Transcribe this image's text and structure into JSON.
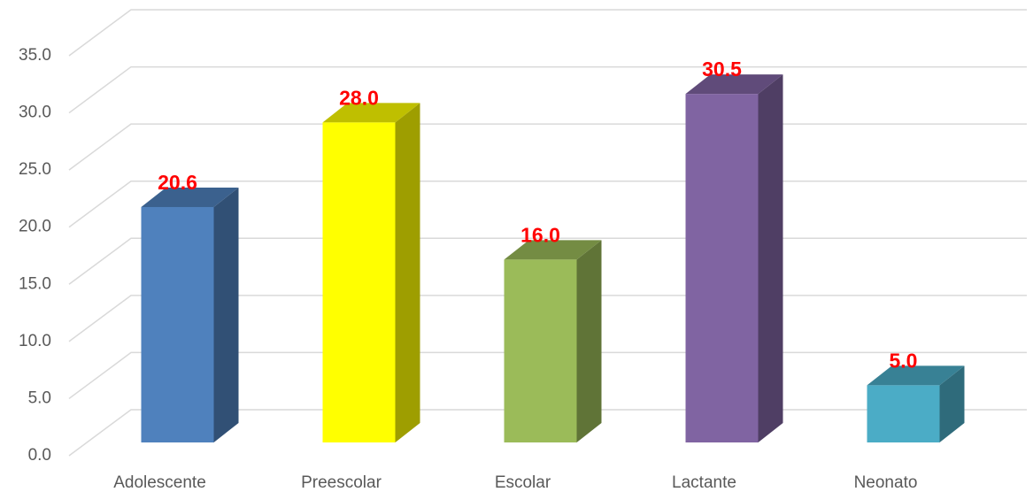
{
  "chart_data": {
    "type": "bar3d",
    "categories": [
      "Adolescente",
      "Preescolar",
      "Escolar",
      "Lactante",
      "Neonato"
    ],
    "values": [
      20.6,
      28,
      16,
      30.5,
      5
    ],
    "value_labels": [
      "20.6",
      "28.0",
      "16.0",
      "30.5",
      "5.0"
    ],
    "colors": [
      "#4f81bd",
      "#ffff00",
      "#9bbb59",
      "#8064a2",
      "#4bacc6"
    ],
    "ylim": [
      0,
      40
    ],
    "yticks": [
      {
        "value": 0,
        "label": "0.0"
      },
      {
        "value": 5,
        "label": "5.0"
      },
      {
        "value": 10,
        "label": "10.0"
      },
      {
        "value": 15,
        "label": "15.0"
      },
      {
        "value": 20,
        "label": "20.0"
      },
      {
        "value": 25,
        "label": "25.0"
      },
      {
        "value": 30,
        "label": "30.0"
      },
      {
        "value": 35,
        "label": "35.0"
      }
    ],
    "grid": true
  }
}
